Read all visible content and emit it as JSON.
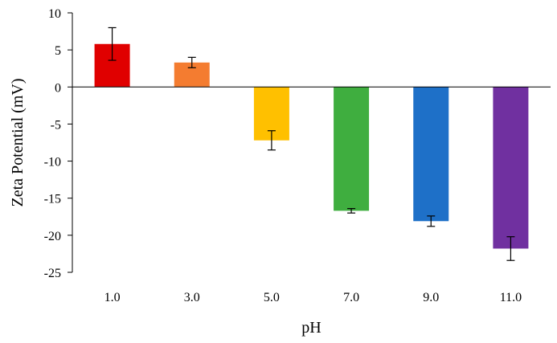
{
  "chart_data": {
    "type": "bar",
    "title": "",
    "xlabel": "pH",
    "ylabel": "Zeta Potential (mV)",
    "categories": [
      "1.0",
      "3.0",
      "5.0",
      "7.0",
      "9.0",
      "11.0"
    ],
    "values": [
      5.8,
      3.3,
      -7.2,
      -16.7,
      -18.1,
      -21.8
    ],
    "errors": [
      2.2,
      0.7,
      1.3,
      0.3,
      0.7,
      1.6
    ],
    "colors": [
      "#e00000",
      "#f47c30",
      "#ffc000",
      "#3fae3f",
      "#1e70c8",
      "#7030a0"
    ],
    "ylim": [
      -25,
      10
    ],
    "yticks": [
      10,
      5,
      0,
      -5,
      -10,
      -15,
      -20,
      -25
    ],
    "ytick_labels": [
      "10",
      "5",
      "0",
      "-5",
      "-10",
      "-15",
      "-20",
      "-25"
    ],
    "grid": false,
    "legend": "none"
  }
}
